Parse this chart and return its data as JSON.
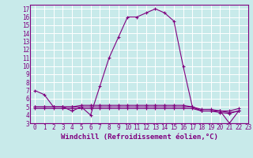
{
  "xlabel": "Windchill (Refroidissement éolien,°C)",
  "bg_color": "#c8eaea",
  "line_color": "#800080",
  "grid_color": "#ffffff",
  "xlim": [
    -0.5,
    23
  ],
  "ylim": [
    3,
    17.5
  ],
  "xticks": [
    0,
    1,
    2,
    3,
    4,
    5,
    6,
    7,
    8,
    9,
    10,
    11,
    12,
    13,
    14,
    15,
    16,
    17,
    18,
    19,
    20,
    21,
    22,
    23
  ],
  "yticks": [
    3,
    4,
    5,
    6,
    7,
    8,
    9,
    10,
    11,
    12,
    13,
    14,
    15,
    16,
    17
  ],
  "series": [
    {
      "x": [
        0,
        1,
        2,
        3,
        4,
        5,
        6,
        7,
        8,
        9,
        10,
        11,
        12,
        13,
        14,
        15,
        16,
        17,
        18,
        19,
        20,
        21,
        22
      ],
      "y": [
        7.0,
        6.5,
        5.0,
        5.0,
        4.5,
        5.0,
        4.0,
        7.5,
        11.0,
        13.5,
        16.0,
        16.0,
        16.5,
        17.0,
        16.5,
        15.5,
        10.0,
        5.0,
        4.5,
        4.5,
        4.5,
        3.0,
        4.5
      ]
    },
    {
      "x": [
        0,
        1,
        2,
        3,
        4,
        5,
        6,
        7,
        8,
        9,
        10,
        11,
        12,
        13,
        14,
        15,
        16,
        17,
        18,
        19,
        20,
        21,
        22
      ],
      "y": [
        5.0,
        5.0,
        5.0,
        5.0,
        5.0,
        5.2,
        5.2,
        5.2,
        5.2,
        5.2,
        5.2,
        5.2,
        5.2,
        5.2,
        5.2,
        5.2,
        5.2,
        5.0,
        4.7,
        4.7,
        4.5,
        4.5,
        4.8
      ]
    },
    {
      "x": [
        0,
        1,
        2,
        3,
        4,
        5,
        6,
        7,
        8,
        9,
        10,
        11,
        12,
        13,
        14,
        15,
        16,
        17,
        18,
        19,
        20,
        21,
        22
      ],
      "y": [
        5.0,
        5.0,
        5.0,
        5.0,
        5.0,
        5.0,
        5.0,
        5.0,
        5.0,
        5.0,
        5.0,
        5.0,
        5.0,
        5.0,
        5.0,
        5.0,
        5.0,
        5.0,
        4.5,
        4.5,
        4.5,
        4.3,
        4.5
      ]
    },
    {
      "x": [
        0,
        1,
        2,
        3,
        4,
        5,
        6,
        7,
        8,
        9,
        10,
        11,
        12,
        13,
        14,
        15,
        16,
        17,
        18,
        19,
        20,
        21,
        22
      ],
      "y": [
        4.8,
        4.8,
        4.8,
        4.8,
        4.8,
        4.8,
        4.8,
        4.8,
        4.8,
        4.8,
        4.8,
        4.8,
        4.8,
        4.8,
        4.8,
        4.8,
        4.8,
        4.8,
        4.5,
        4.5,
        4.3,
        4.2,
        4.5
      ]
    }
  ],
  "xlabel_fontsize": 6.5,
  "tick_fontsize": 5.5
}
